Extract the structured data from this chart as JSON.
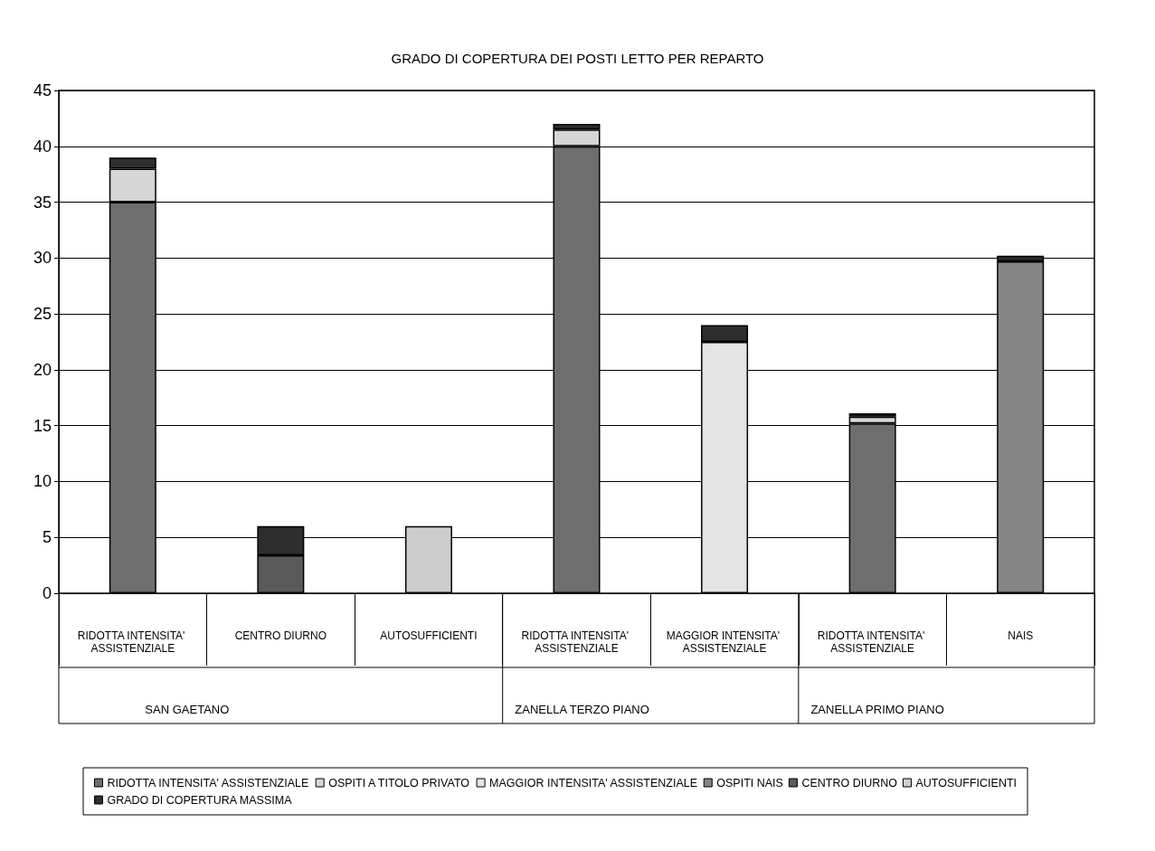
{
  "chart_data": {
    "type": "bar",
    "title": "GRADO DI COPERTURA DEI POSTI LETTO PER REPARTO",
    "stacked": true,
    "categories": [
      "RIDOTTA INTENSITA' ASSISTENZIALE",
      "CENTRO DIURNO",
      "AUTOSUFFICIENTI",
      "RIDOTTA INTENSITA' ASSISTENZIALE",
      "MAGGIOR INTENSITA' ASSISTENZIALE",
      "RIDOTTA INTENSITA' ASSISTENZIALE",
      "NAIS"
    ],
    "series": [
      {
        "name": "RIDOTTA INTENSITA' ASSISTENZIALE",
        "color": "#6e6e6e",
        "values": [
          35,
          null,
          null,
          40,
          null,
          15.2,
          null
        ]
      },
      {
        "name": "OSPITI A TITOLO PRIVATO",
        "color": "#d6d6d6",
        "values": [
          3,
          null,
          null,
          1.5,
          null,
          0.6,
          null
        ]
      },
      {
        "name": "MAGGIOR INTENSITA' ASSISTENZIALE",
        "color": "#e4e4e4",
        "values": [
          null,
          null,
          null,
          null,
          22.5,
          null,
          null
        ]
      },
      {
        "name": "OSPITI NAIS",
        "color": "#858585",
        "values": [
          null,
          null,
          null,
          null,
          null,
          null,
          29.7
        ]
      },
      {
        "name": "CENTRO DIURNO",
        "color": "#5a5a5a",
        "values": [
          null,
          3.4,
          null,
          null,
          null,
          null,
          null
        ]
      },
      {
        "name": "AUTOSUFFICIENTI",
        "color": "#cdcdcd",
        "values": [
          null,
          null,
          6,
          null,
          null,
          null,
          null
        ]
      },
      {
        "name": "GRADO DI COPERTURA MASSIMA",
        "color": "#2e2e2e",
        "values": [
          1,
          2.6,
          null,
          0.5,
          1.5,
          0.3,
          0.5
        ]
      }
    ],
    "ylim": [
      0,
      45
    ],
    "yticks": [
      0,
      5,
      10,
      15,
      20,
      25,
      30,
      35,
      40,
      45
    ],
    "grid": "y",
    "legend": "bottom",
    "annotations": [
      "SAN GAETANO",
      "ZANELLA TERZO PIANO",
      "ZANELLA PRIMO PIANO"
    ]
  }
}
